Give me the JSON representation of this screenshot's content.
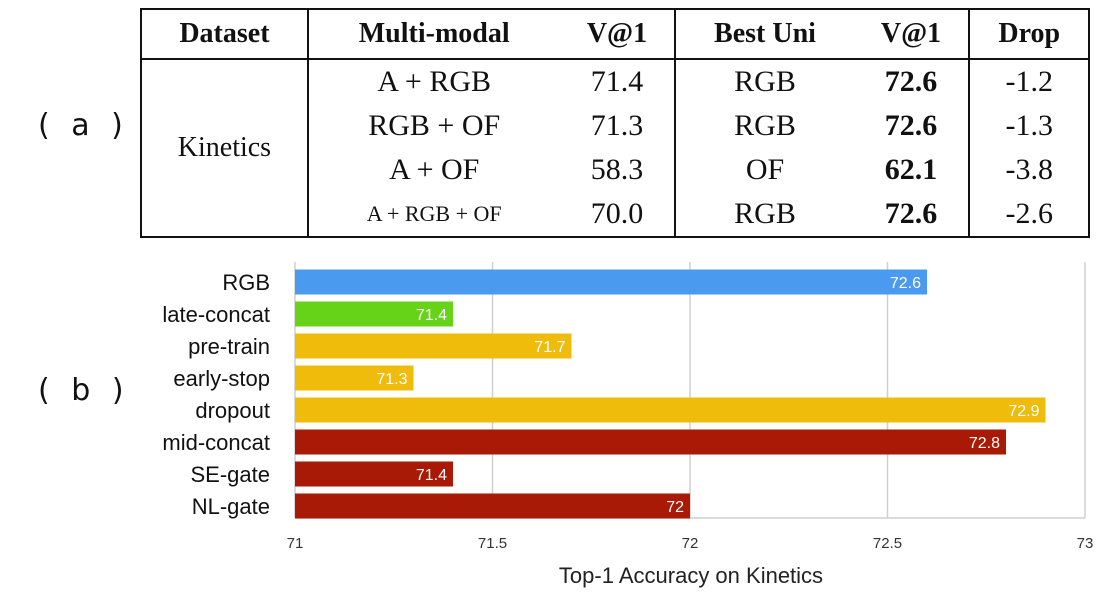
{
  "labels": {
    "a": "( a )",
    "b": "( b )"
  },
  "table": {
    "headers": [
      "Dataset",
      "Multi-modal",
      "V@1",
      "Best Uni",
      "V@1",
      "Drop"
    ],
    "dataset": "Kinetics",
    "rows": [
      {
        "multi": "A + RGB",
        "v1": "71.4",
        "uni": "RGB",
        "uni_v1": "72.6",
        "drop": "-1.2"
      },
      {
        "multi": "RGB + OF",
        "v1": "71.3",
        "uni": "RGB",
        "uni_v1": "72.6",
        "drop": "-1.3"
      },
      {
        "multi": "A + OF",
        "v1": "58.3",
        "uni": "OF",
        "uni_v1": "62.1",
        "drop": "-3.8"
      },
      {
        "multi": "A + RGB + OF",
        "v1": "70.0",
        "uni": "RGB",
        "uni_v1": "72.6",
        "drop": "-2.6"
      }
    ]
  },
  "chart_data": {
    "type": "bar",
    "orientation": "horizontal",
    "categories": [
      "RGB",
      "late-concat",
      "pre-train",
      "early-stop",
      "dropout",
      "mid-concat",
      "SE-gate",
      "NL-gate"
    ],
    "values": [
      72.6,
      71.4,
      71.7,
      71.3,
      72.9,
      72.8,
      71.4,
      72.0
    ],
    "value_labels": [
      "72.6",
      "71.4",
      "71.7",
      "71.3",
      "72.9",
      "72.8",
      "71.4",
      "72"
    ],
    "colors": [
      "#4A9BF0",
      "#66D319",
      "#F0BC0C",
      "#F0BC0C",
      "#F0BC0C",
      "#A91A06",
      "#A91A06",
      "#A91A06"
    ],
    "xlabel": "Top-1 Accuracy on Kinetics",
    "xlim": [
      71,
      73
    ],
    "xticks": [
      "71",
      "71.5",
      "72",
      "72.5",
      "73"
    ],
    "grid": true
  }
}
